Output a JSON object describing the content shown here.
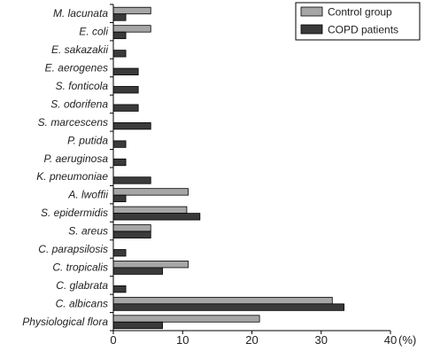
{
  "chart_data": {
    "type": "bar",
    "orientation": "horizontal",
    "categories": [
      "M. lacunata",
      "E. coli",
      "E. sakazakii",
      "E. aerogenes",
      "S. fonticola",
      "S. odorifena",
      "S. marcescens",
      "P. putida",
      "P. aeruginosa",
      "K. pneumoniae",
      "A. lwoffii",
      "S. epidermidis",
      "S. areus",
      "C. parapsilosis",
      "C. tropicalis",
      "C. glabrata",
      "C. albicans",
      "Physiological flora"
    ],
    "series": [
      {
        "name": "Control group",
        "color": "#a6a6a6",
        "values": [
          5.4,
          5.4,
          0,
          0,
          0,
          0,
          0,
          0,
          0,
          0,
          10.8,
          10.6,
          5.4,
          0,
          10.8,
          0,
          31.6,
          21.1
        ]
      },
      {
        "name": "COPD patients",
        "color": "#3a3a3a",
        "values": [
          1.8,
          1.8,
          1.8,
          3.6,
          3.6,
          3.6,
          5.4,
          1.8,
          1.8,
          5.4,
          1.8,
          12.5,
          5.4,
          1.8,
          7.1,
          1.8,
          33.3,
          7.1
        ]
      }
    ],
    "xlim": [
      0,
      40
    ],
    "xticks": [
      0,
      10,
      20,
      30,
      40
    ],
    "xunit": "(%)",
    "grid": false,
    "legend_position": "top-right"
  }
}
